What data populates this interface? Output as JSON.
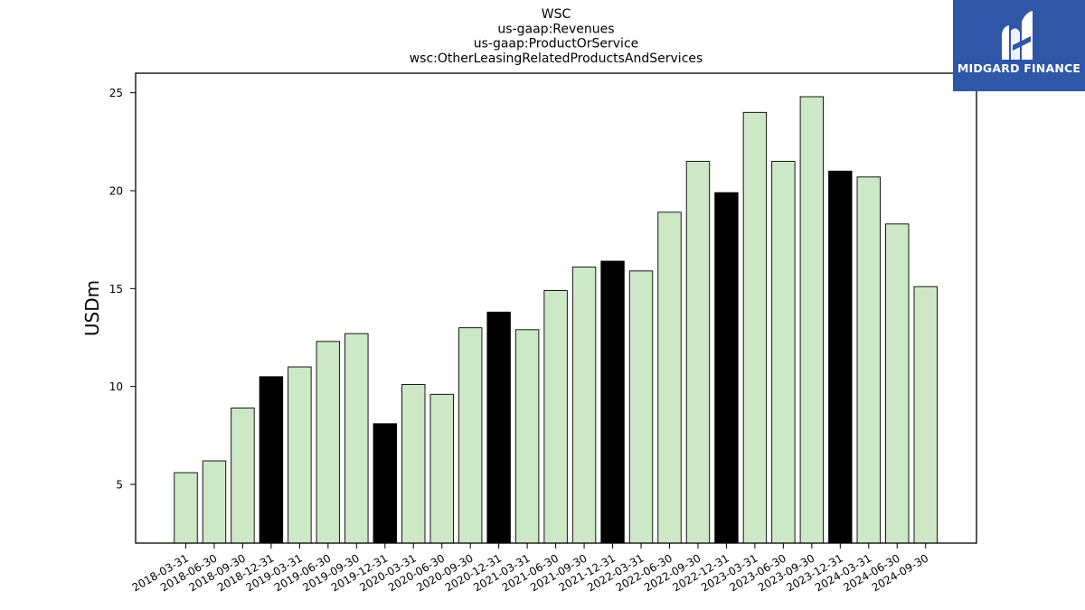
{
  "logo": {
    "text": "MIDGARD FINANCE",
    "bg_color": "#2f56a7"
  },
  "chart_data": {
    "type": "bar",
    "title_lines": [
      "WSC",
      "us-gaap:Revenues",
      "us-gaap:ProductOrService",
      "wsc:OtherLeasingRelatedProductsAndServices"
    ],
    "xlabel": "",
    "ylabel": "USDm",
    "ylim": [
      2,
      26
    ],
    "yticks": [
      5,
      10,
      15,
      20,
      25
    ],
    "grid": false,
    "colors": {
      "default": "#cde8c6",
      "year_end": "#000000",
      "edge": "#000000"
    },
    "categories": [
      "2018-03-31",
      "2018-06-30",
      "2018-09-30",
      "2018-12-31",
      "2019-03-31",
      "2019-06-30",
      "2019-09-30",
      "2019-12-31",
      "2020-03-31",
      "2020-06-30",
      "2020-09-30",
      "2020-12-31",
      "2021-03-31",
      "2021-06-30",
      "2021-09-30",
      "2021-12-31",
      "2022-03-31",
      "2022-06-30",
      "2022-09-30",
      "2022-12-31",
      "2023-03-31",
      "2023-06-30",
      "2023-09-30",
      "2023-12-31",
      "2024-03-31",
      "2024-06-30",
      "2024-09-30"
    ],
    "values": [
      5.6,
      6.2,
      8.9,
      10.5,
      11.0,
      12.3,
      12.7,
      8.1,
      10.1,
      9.6,
      13.0,
      13.8,
      12.9,
      14.9,
      16.1,
      16.4,
      15.9,
      18.9,
      21.5,
      19.9,
      24.0,
      21.5,
      24.8,
      21.0,
      20.7,
      18.3,
      15.1
    ]
  }
}
